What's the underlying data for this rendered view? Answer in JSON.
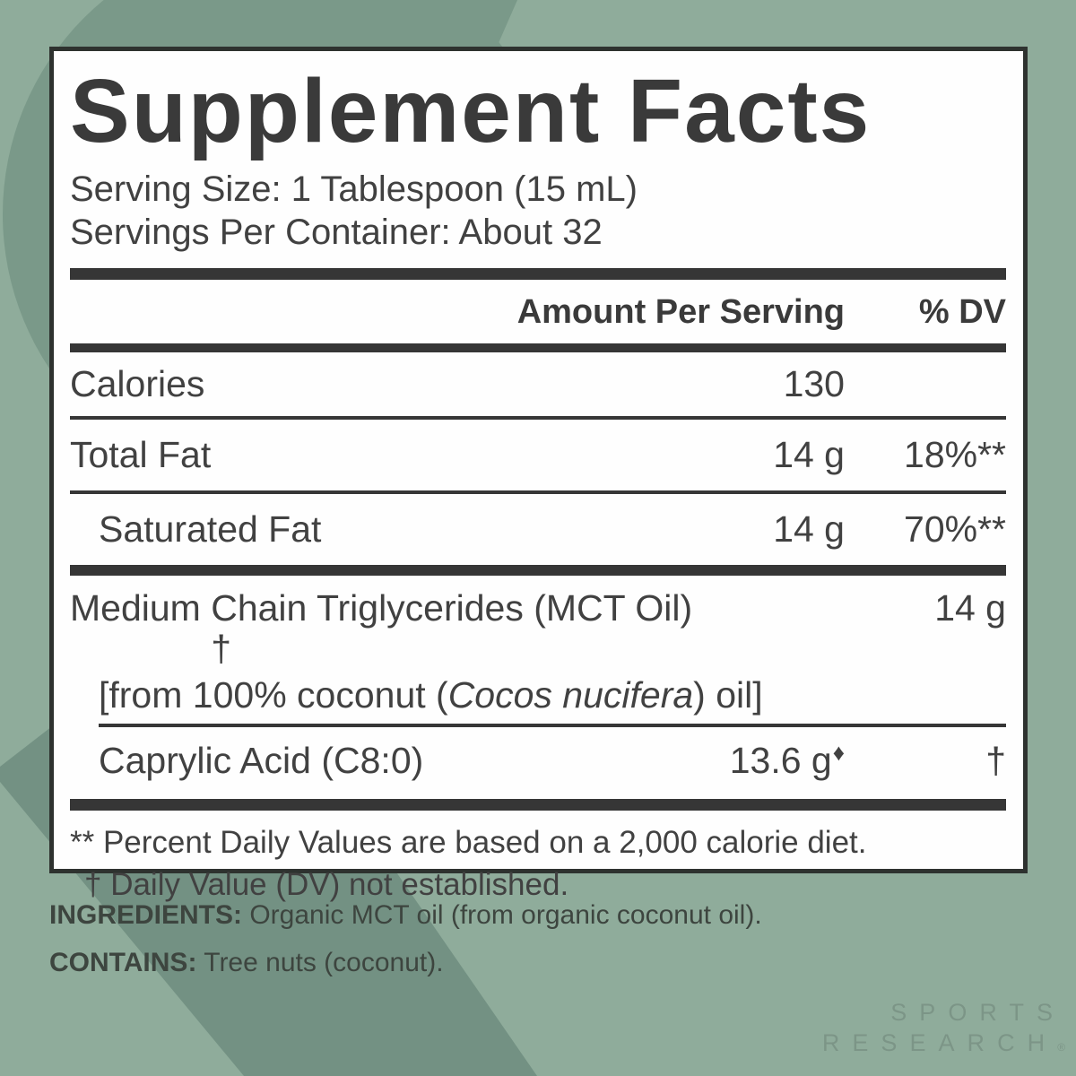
{
  "label": {
    "title": "Supplement Facts",
    "serving_size": "Serving Size: 1 Tablespoon (15 mL)",
    "servings_per_container": "Servings Per Container: About 32",
    "header": {
      "amount": "Amount Per Serving",
      "dv": "% DV"
    },
    "rows": [
      {
        "name": "Calories",
        "amount": "130",
        "dv": ""
      },
      {
        "name": "Total Fat",
        "amount": "14 g",
        "dv": "18%**"
      },
      {
        "name": "Saturated Fat",
        "amount": "14 g",
        "dv": "70%**"
      },
      {
        "name": "Medium Chain Triglycerides (MCT Oil)",
        "amount": "14 g",
        "dv": "†",
        "sub_pre": "[from 100% coconut (",
        "sub_italic": "Cocos nucifera",
        "sub_post": ") oil]"
      },
      {
        "name": "Caprylic Acid (C8:0)",
        "amount": "13.6 g",
        "amount_mark": "♦",
        "dv": "†"
      }
    ],
    "footnotes": [
      "** Percent Daily Values are based on a 2,000 calorie diet.",
      "† Daily Value (DV) not established."
    ]
  },
  "ingredients": {
    "label": "INGREDIENTS:",
    "text": " Organic MCT oil (from organic coconut oil)."
  },
  "contains": {
    "label": "CONTAINS:",
    "text": " Tree nuts (coconut)."
  },
  "brand": {
    "line1": "SPORTS",
    "line2": "RESEARCH",
    "reg": "®"
  },
  "colors": {
    "background": "#8FAC9B",
    "shape_dark": "#7A9989",
    "band_dark": "#739183",
    "panel_background": "#FEFEFE",
    "panel_border": "#2E322F",
    "text": "#3C3C3C"
  }
}
